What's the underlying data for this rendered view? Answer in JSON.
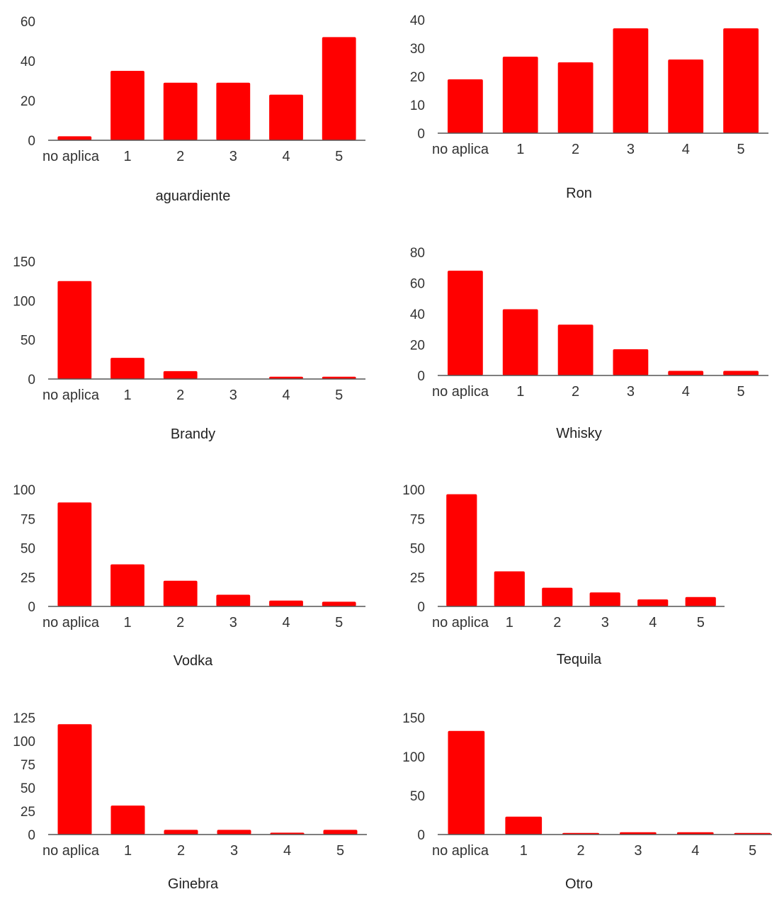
{
  "colors": {
    "bar": "#ff0000",
    "axis": "#555555",
    "text": "#333333",
    "background": "#ffffff"
  },
  "chart_data": [
    {
      "type": "bar",
      "xlabel": "aguardiente",
      "ylabel": "",
      "categories": [
        "no aplica",
        "1",
        "2",
        "3",
        "4",
        "5"
      ],
      "values": [
        2,
        35,
        29,
        29,
        23,
        52
      ],
      "ylim": [
        0,
        60
      ],
      "yticks": [
        0,
        20,
        40,
        60
      ]
    },
    {
      "type": "bar",
      "xlabel": "Ron",
      "ylabel": "",
      "categories": [
        "no aplica",
        "1",
        "2",
        "3",
        "4",
        "5"
      ],
      "values": [
        19,
        27,
        25,
        37,
        26,
        37
      ],
      "ylim": [
        0,
        40
      ],
      "yticks": [
        0,
        10,
        20,
        30,
        40
      ]
    },
    {
      "type": "bar",
      "xlabel": "Brandy",
      "ylabel": "",
      "categories": [
        "no aplica",
        "1",
        "2",
        "3",
        "4",
        "5"
      ],
      "values": [
        125,
        27,
        10,
        0,
        3,
        3
      ],
      "ylim": [
        0,
        150
      ],
      "yticks": [
        0,
        50,
        100,
        150
      ]
    },
    {
      "type": "bar",
      "xlabel": "Whisky",
      "ylabel": "",
      "categories": [
        "no aplica",
        "1",
        "2",
        "3",
        "4",
        "5"
      ],
      "values": [
        68,
        43,
        33,
        17,
        3,
        3
      ],
      "ylim": [
        0,
        80
      ],
      "yticks": [
        0,
        20,
        40,
        60,
        80
      ]
    },
    {
      "type": "bar",
      "xlabel": "Vodka",
      "ylabel": "",
      "categories": [
        "no aplica",
        "1",
        "2",
        "3",
        "4",
        "5"
      ],
      "values": [
        89,
        36,
        22,
        10,
        5,
        4
      ],
      "ylim": [
        0,
        100
      ],
      "yticks": [
        0,
        25,
        50,
        75,
        100
      ]
    },
    {
      "type": "bar",
      "xlabel": "Tequila",
      "ylabel": "",
      "categories": [
        "no aplica",
        "1",
        "2",
        "3",
        "4",
        "5"
      ],
      "values": [
        96,
        30,
        16,
        12,
        6,
        8
      ],
      "ylim": [
        0,
        100
      ],
      "yticks": [
        0,
        25,
        50,
        75,
        100
      ]
    },
    {
      "type": "bar",
      "xlabel": "Ginebra",
      "ylabel": "",
      "categories": [
        "no aplica",
        "1",
        "2",
        "3",
        "4",
        "5"
      ],
      "values": [
        118,
        31,
        5,
        5,
        2,
        5
      ],
      "ylim": [
        0,
        125
      ],
      "yticks": [
        0,
        25,
        50,
        75,
        100,
        125
      ]
    },
    {
      "type": "bar",
      "xlabel": "Otro",
      "ylabel": "",
      "categories": [
        "no aplica",
        "1",
        "2",
        "3",
        "4",
        "5"
      ],
      "values": [
        133,
        23,
        2,
        3,
        3,
        2
      ],
      "ylim": [
        0,
        150
      ],
      "yticks": [
        0,
        50,
        100,
        150
      ]
    }
  ]
}
